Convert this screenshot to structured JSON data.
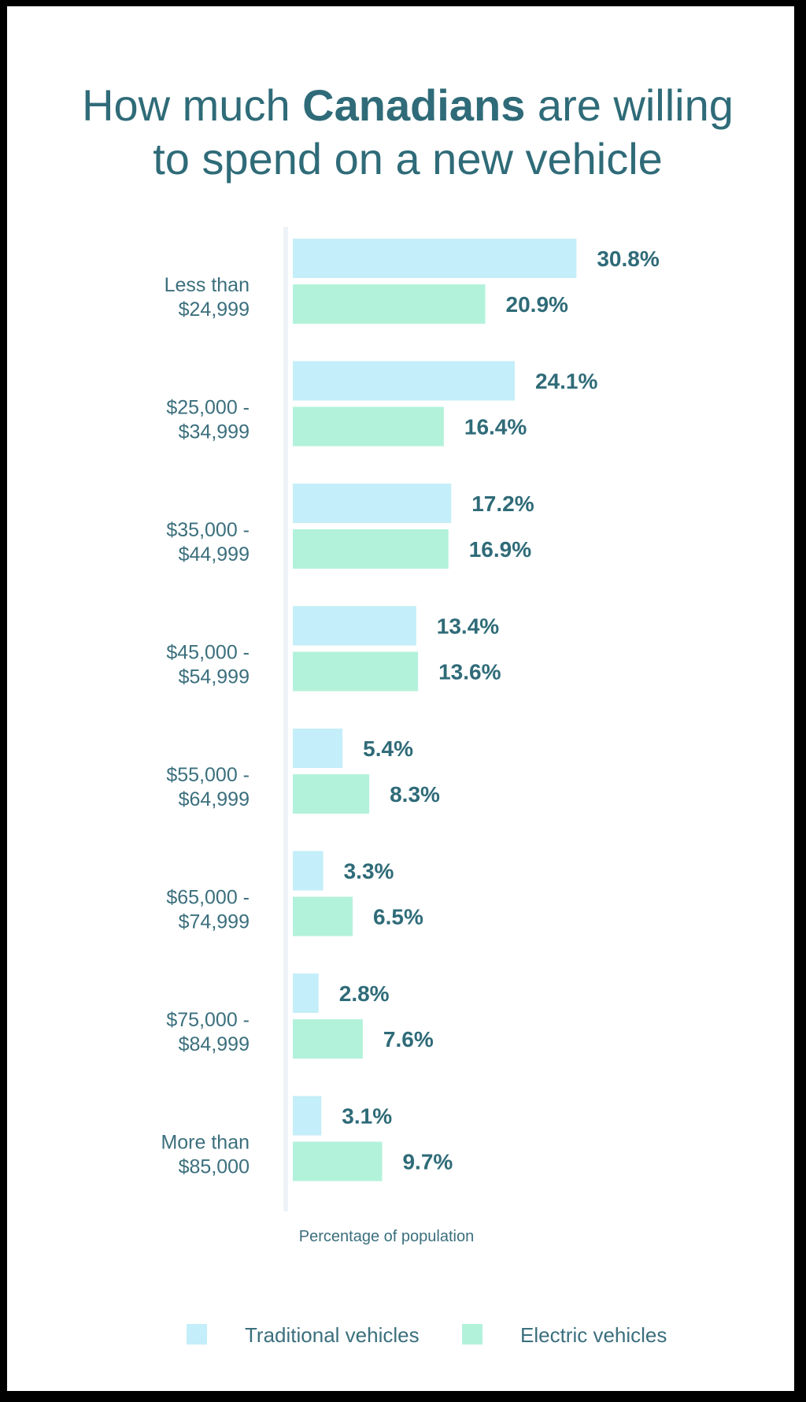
{
  "title": {
    "pre": "How much ",
    "bold": "Canadians",
    "post": " are willing",
    "line2": "to spend on a new vehicle"
  },
  "colors": {
    "traditional": "#c4eef9",
    "electric": "#b3f2da",
    "text": "#2f6b78"
  },
  "chart_data": {
    "type": "bar",
    "orientation": "horizontal",
    "title": "How much Canadians are willing to spend on a new vehicle",
    "xlabel": "Percentage of population",
    "ylabel": "",
    "grid": false,
    "legend_position": "bottom",
    "categories": [
      [
        "Less than",
        "$24,999"
      ],
      [
        "$25,000 -",
        "$34,999"
      ],
      [
        "$35,000 -",
        "$44,999"
      ],
      [
        "$45,000 -",
        "$54,999"
      ],
      [
        "$55,000 -",
        "$64,999"
      ],
      [
        "$65,000 -",
        "$74,999"
      ],
      [
        "$75,000 -",
        "$84,999"
      ],
      [
        "More than",
        "$85,000"
      ]
    ],
    "series": [
      {
        "name": "Traditional vehicles",
        "values": [
          30.8,
          24.1,
          17.2,
          13.4,
          5.4,
          3.3,
          2.8,
          3.1
        ],
        "labels": [
          "30.8%",
          "24.1%",
          "17.2%",
          "13.4%",
          "5.4%",
          "3.3%",
          "2.8%",
          "3.1%"
        ]
      },
      {
        "name": "Electric vehicles",
        "values": [
          20.9,
          16.4,
          16.9,
          13.6,
          8.3,
          6.5,
          7.6,
          9.7
        ],
        "labels": [
          "20.9%",
          "16.4%",
          "16.9%",
          "13.6%",
          "8.3%",
          "6.5%",
          "7.6%",
          "9.7%"
        ]
      }
    ]
  }
}
